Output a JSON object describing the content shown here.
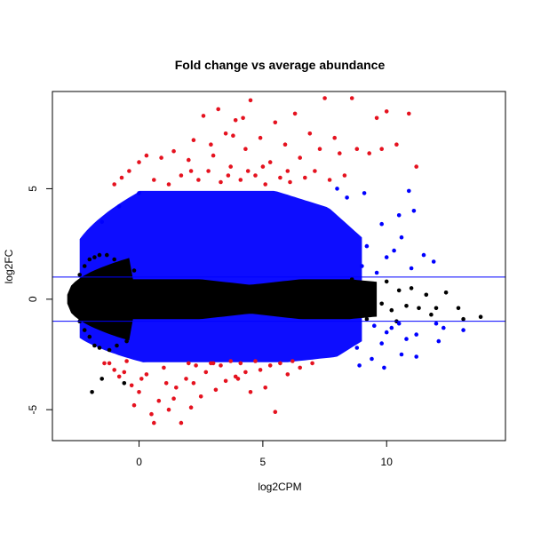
{
  "chart_data": {
    "type": "scatter",
    "title": "Fold change vs average abundance",
    "xlabel": "log2CPM",
    "ylabel": "log2FC",
    "xlim": [
      -3.5,
      14.8
    ],
    "ylim": [
      -6.4,
      9.4
    ],
    "x_ticks": [
      {
        "value": 0,
        "label": "0"
      },
      {
        "value": 5,
        "label": "5"
      },
      {
        "value": 10,
        "label": "10"
      }
    ],
    "y_ticks": [
      {
        "value": -5,
        "label": "-5"
      },
      {
        "value": 0,
        "label": "0"
      },
      {
        "value": 5,
        "label": "5"
      }
    ],
    "hlines": [
      1,
      -1
    ],
    "hline_color": "#0000ff",
    "grid": false,
    "legend": "none",
    "colors": {
      "not_significant": "#000000",
      "significant": "#0000ff",
      "large_fold_change": "#e5121f"
    },
    "series": [
      {
        "color_key": "large_fold_change",
        "points": [
          [
            -1.2,
            -2.9
          ],
          [
            -1.0,
            -3.2
          ],
          [
            -0.8,
            -3.5
          ],
          [
            -0.5,
            -2.8
          ],
          [
            -0.3,
            -3.9
          ],
          [
            0.0,
            -4.2
          ],
          [
            0.3,
            -3.4
          ],
          [
            0.5,
            -5.2
          ],
          [
            0.8,
            -4.6
          ],
          [
            1.0,
            -3.1
          ],
          [
            1.2,
            -5.0
          ],
          [
            1.5,
            -4.0
          ],
          [
            1.7,
            -5.6
          ],
          [
            1.9,
            -3.6
          ],
          [
            2.1,
            -4.9
          ],
          [
            2.3,
            -3.0
          ],
          [
            2.5,
            -4.4
          ],
          [
            2.7,
            -3.3
          ],
          [
            2.9,
            -2.9
          ],
          [
            3.1,
            -4.1
          ],
          [
            3.3,
            -3.0
          ],
          [
            3.5,
            -3.7
          ],
          [
            3.7,
            -2.8
          ],
          [
            3.9,
            -3.5
          ],
          [
            4.1,
            -2.9
          ],
          [
            4.3,
            -3.3
          ],
          [
            4.5,
            -4.2
          ],
          [
            4.7,
            -2.8
          ],
          [
            4.9,
            -3.2
          ],
          [
            5.1,
            -4.0
          ],
          [
            5.3,
            -3.0
          ],
          [
            5.5,
            -5.1
          ],
          [
            5.7,
            -2.9
          ],
          [
            6.0,
            -3.4
          ],
          [
            6.2,
            -2.8
          ],
          [
            6.5,
            -3.1
          ],
          [
            7.0,
            -2.9
          ],
          [
            -0.2,
            -4.8
          ],
          [
            0.6,
            -5.6
          ],
          [
            1.4,
            -4.5
          ],
          [
            2.2,
            -3.8
          ],
          [
            3.0,
            -2.9
          ],
          [
            4.0,
            -3.6
          ],
          [
            2.0,
            -2.9
          ],
          [
            1.1,
            -3.8
          ],
          [
            0.1,
            -3.6
          ],
          [
            -0.6,
            -3.3
          ],
          [
            -1.4,
            -2.9
          ],
          [
            -1.0,
            5.2
          ],
          [
            -0.7,
            5.5
          ],
          [
            -0.4,
            5.8
          ],
          [
            0.0,
            6.2
          ],
          [
            0.3,
            6.5
          ],
          [
            0.6,
            5.4
          ],
          [
            0.9,
            6.4
          ],
          [
            1.2,
            5.2
          ],
          [
            1.4,
            6.7
          ],
          [
            1.7,
            5.6
          ],
          [
            2.0,
            6.3
          ],
          [
            2.2,
            7.2
          ],
          [
            2.4,
            5.4
          ],
          [
            2.6,
            8.3
          ],
          [
            2.8,
            5.8
          ],
          [
            3.0,
            6.5
          ],
          [
            3.2,
            8.6
          ],
          [
            3.3,
            5.3
          ],
          [
            3.5,
            7.5
          ],
          [
            3.7,
            6.0
          ],
          [
            3.9,
            8.1
          ],
          [
            4.1,
            5.4
          ],
          [
            4.3,
            6.8
          ],
          [
            4.5,
            9.0
          ],
          [
            4.7,
            5.6
          ],
          [
            4.9,
            7.3
          ],
          [
            5.1,
            5.2
          ],
          [
            5.3,
            6.2
          ],
          [
            5.5,
            8.0
          ],
          [
            5.7,
            5.5
          ],
          [
            5.9,
            7.0
          ],
          [
            6.1,
            5.3
          ],
          [
            6.3,
            8.4
          ],
          [
            6.5,
            6.4
          ],
          [
            6.7,
            5.5
          ],
          [
            6.9,
            7.5
          ],
          [
            7.1,
            5.8
          ],
          [
            7.3,
            6.8
          ],
          [
            7.5,
            9.1
          ],
          [
            7.7,
            5.4
          ],
          [
            7.9,
            7.3
          ],
          [
            8.1,
            6.6
          ],
          [
            8.3,
            5.6
          ],
          [
            8.6,
            9.1
          ],
          [
            8.8,
            6.8
          ],
          [
            9.3,
            6.6
          ],
          [
            9.6,
            8.2
          ],
          [
            9.8,
            6.8
          ],
          [
            10.0,
            8.5
          ],
          [
            10.4,
            7.0
          ],
          [
            10.9,
            8.4
          ],
          [
            11.2,
            6.0
          ],
          [
            3.6,
            5.6
          ],
          [
            4.4,
            5.8
          ],
          [
            2.9,
            7.0
          ],
          [
            5.0,
            6.0
          ],
          [
            6.0,
            5.8
          ],
          [
            3.8,
            7.4
          ],
          [
            2.1,
            5.8
          ],
          [
            4.2,
            8.2
          ]
        ]
      },
      {
        "color_key": "not_significant",
        "points": [
          [
            -2.8,
            0.0
          ],
          [
            -2.6,
            0.6
          ],
          [
            -2.6,
            -0.6
          ],
          [
            -2.4,
            1.1
          ],
          [
            -2.4,
            -1.0
          ],
          [
            -2.2,
            1.5
          ],
          [
            -2.2,
            -1.4
          ],
          [
            -2.0,
            1.8
          ],
          [
            -2.0,
            -1.7
          ],
          [
            -1.8,
            1.9
          ],
          [
            -1.8,
            -2.1
          ],
          [
            -1.6,
            2.0
          ],
          [
            -1.6,
            -2.2
          ],
          [
            -1.3,
            2.0
          ],
          [
            -1.2,
            -2.3
          ],
          [
            -1.0,
            1.8
          ],
          [
            -0.9,
            -2.1
          ],
          [
            -0.7,
            1.6
          ],
          [
            -0.5,
            -1.9
          ],
          [
            -0.2,
            1.3
          ],
          [
            9.0,
            0.3
          ],
          [
            9.3,
            -0.4
          ],
          [
            9.5,
            0.6
          ],
          [
            9.8,
            -0.2
          ],
          [
            10.0,
            0.8
          ],
          [
            10.2,
            -0.5
          ],
          [
            10.5,
            0.4
          ],
          [
            10.8,
            -0.3
          ],
          [
            11.0,
            0.5
          ],
          [
            11.3,
            -0.4
          ],
          [
            11.6,
            0.2
          ],
          [
            12.0,
            -0.4
          ],
          [
            12.4,
            0.3
          ],
          [
            13.1,
            -0.9
          ],
          [
            13.8,
            -0.8
          ],
          [
            9.2,
            -0.9
          ],
          [
            10.4,
            -1.0
          ],
          [
            8.6,
            0.9
          ],
          [
            11.8,
            -0.7
          ],
          [
            12.9,
            -0.4
          ],
          [
            -1.9,
            -4.2
          ],
          [
            -1.5,
            -3.6
          ],
          [
            -0.6,
            -3.8
          ]
        ]
      },
      {
        "color_key": "significant",
        "points": [
          [
            9.5,
            -1.2
          ],
          [
            10.0,
            -1.5
          ],
          [
            10.5,
            -1.1
          ],
          [
            10.8,
            -1.8
          ],
          [
            11.2,
            -1.6
          ],
          [
            12.0,
            -1.1
          ],
          [
            12.3,
            -1.3
          ],
          [
            13.1,
            -1.4
          ],
          [
            9.8,
            -2.0
          ],
          [
            10.2,
            -1.3
          ],
          [
            8.8,
            -2.2
          ],
          [
            9.0,
            1.5
          ],
          [
            9.6,
            1.2
          ],
          [
            10.0,
            1.9
          ],
          [
            10.6,
            2.8
          ],
          [
            11.0,
            1.4
          ],
          [
            11.5,
            2.0
          ],
          [
            11.9,
            1.7
          ],
          [
            9.2,
            2.4
          ],
          [
            10.3,
            2.2
          ],
          [
            11.1,
            4.0
          ],
          [
            10.9,
            4.9
          ],
          [
            9.8,
            3.4
          ],
          [
            10.5,
            3.8
          ],
          [
            9.1,
            4.8
          ],
          [
            8.4,
            4.6
          ],
          [
            8.0,
            5.0
          ],
          [
            -1.5,
            3.5
          ],
          [
            -0.8,
            4.2
          ],
          [
            0.0,
            4.8
          ],
          [
            9.9,
            -3.1
          ],
          [
            10.6,
            -2.5
          ],
          [
            11.2,
            -2.6
          ],
          [
            12.1,
            -1.9
          ],
          [
            8.9,
            -3.0
          ],
          [
            9.4,
            -2.7
          ]
        ]
      }
    ]
  }
}
